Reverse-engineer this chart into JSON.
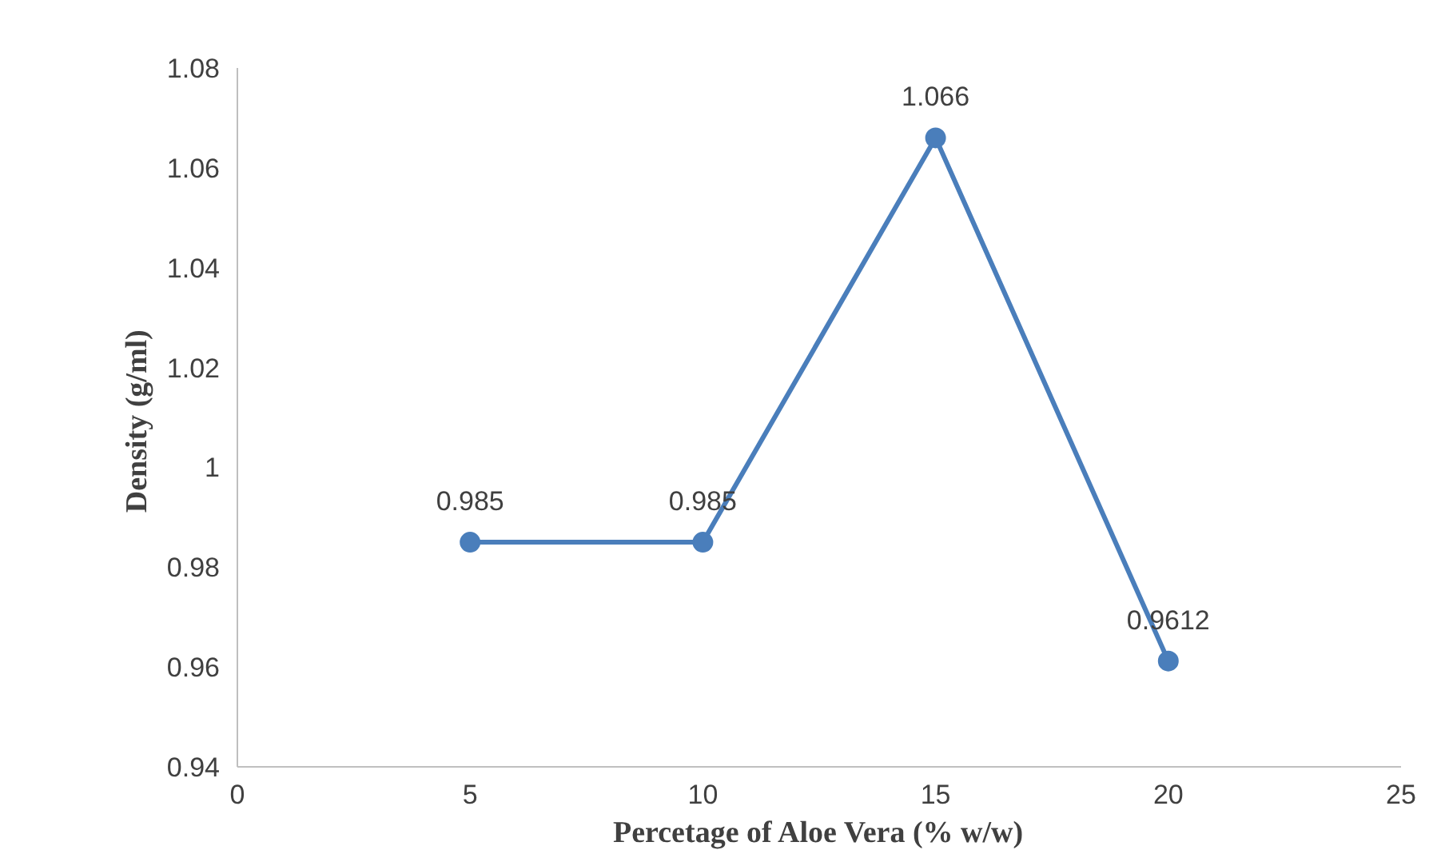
{
  "chart_data": {
    "type": "line",
    "xlabel": "Percetage of Aloe Vera (% w/w)",
    "ylabel": "Density  (g/ml)",
    "x": [
      5,
      10,
      15,
      20
    ],
    "series": [
      {
        "color": "#4a7ebb",
        "values": [
          0.985,
          0.985,
          1.066,
          0.9612
        ]
      }
    ],
    "xlim": [
      0,
      25
    ],
    "xticks": [
      0,
      5,
      10,
      15,
      20,
      25
    ],
    "ylim": [
      0.94,
      1.08
    ],
    "yticks": [
      0.94,
      0.96,
      0.98,
      1,
      1.02,
      1.04,
      1.06,
      1.08
    ],
    "marker": "circle",
    "line_style": "solid",
    "data_labels": true,
    "grid": false
  }
}
